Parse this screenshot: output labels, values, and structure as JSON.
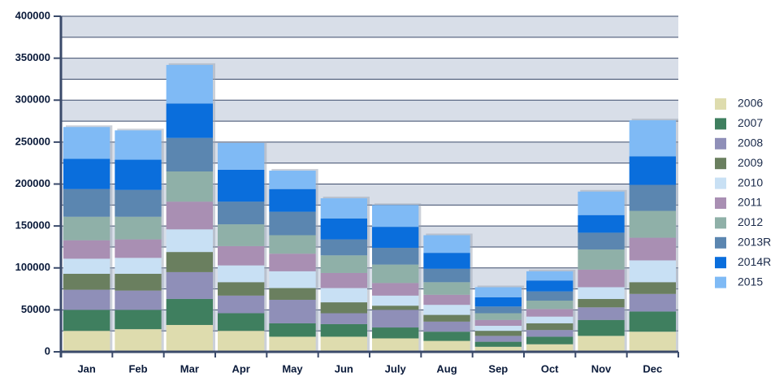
{
  "chart_data": {
    "type": "stacked_bar",
    "categories": [
      "Jan",
      "Feb",
      "Mar",
      "Apr",
      "May",
      "Jun",
      "July",
      "Aug",
      "Sep",
      "Oct",
      "Nov",
      "Dec"
    ],
    "series": [
      {
        "name": "2006",
        "color": "#dedcae",
        "values": [
          25000,
          27000,
          32000,
          25000,
          18000,
          18000,
          16000,
          13000,
          6000,
          9000,
          19000,
          24000
        ]
      },
      {
        "name": "2007",
        "color": "#3f7f5f",
        "values": [
          25000,
          23000,
          31000,
          21000,
          16000,
          15000,
          13000,
          11000,
          6000,
          9000,
          19000,
          24000
        ]
      },
      {
        "name": "2008",
        "color": "#8f8fb8",
        "values": [
          24000,
          23000,
          32000,
          21000,
          28000,
          13000,
          21000,
          12000,
          7000,
          8000,
          15000,
          21000
        ]
      },
      {
        "name": "2009",
        "color": "#6a7f5f",
        "values": [
          19000,
          20000,
          24000,
          16000,
          14000,
          13000,
          5000,
          8000,
          6000,
          8000,
          10000,
          14000
        ]
      },
      {
        "name": "2010",
        "color": "#c8e0f4",
        "values": [
          18000,
          19000,
          27000,
          20000,
          20000,
          17000,
          12000,
          12000,
          6000,
          8000,
          14000,
          26000
        ]
      },
      {
        "name": "2011",
        "color": "#a98fb3",
        "values": [
          22000,
          22000,
          33000,
          23000,
          21000,
          18000,
          15000,
          12000,
          7000,
          9000,
          21000,
          27000
        ]
      },
      {
        "name": "2012",
        "color": "#8fb0a8",
        "values": [
          28000,
          27000,
          36000,
          26000,
          22000,
          21000,
          22000,
          15000,
          8000,
          10000,
          24000,
          32000
        ]
      },
      {
        "name": "2013R",
        "color": "#5b86b0",
        "values": [
          33000,
          32000,
          40000,
          27000,
          28000,
          19000,
          20000,
          16000,
          8000,
          11000,
          20000,
          31000
        ]
      },
      {
        "name": "2014R",
        "color": "#0a6edc",
        "values": [
          36000,
          36000,
          41000,
          38000,
          27000,
          25000,
          25000,
          19000,
          11000,
          13000,
          21000,
          34000
        ]
      },
      {
        "name": "2015",
        "color": "#7fbaf5",
        "values": [
          38000,
          35000,
          46000,
          32000,
          22000,
          24000,
          26000,
          21000,
          12000,
          11000,
          28000,
          43000
        ]
      }
    ],
    "ylim": [
      0,
      400000
    ],
    "yticks": [
      0,
      50000,
      100000,
      150000,
      200000,
      250000,
      300000,
      350000,
      400000
    ],
    "grid": true,
    "legend": "right"
  }
}
